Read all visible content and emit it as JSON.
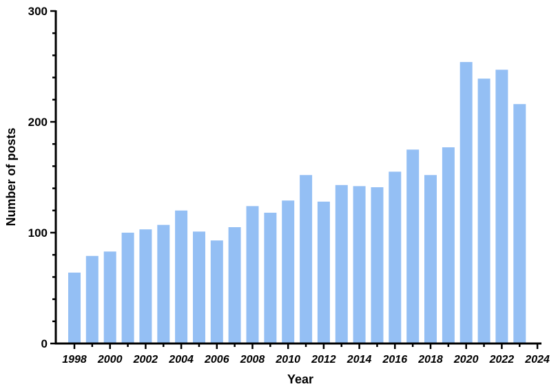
{
  "chart_data": {
    "type": "bar",
    "title": "",
    "xlabel": "Year",
    "ylabel": "Number of posts",
    "ylim": [
      0,
      300
    ],
    "yticks": [
      0,
      100,
      200,
      300
    ],
    "xticks": [
      "1998",
      "2000",
      "2002",
      "2004",
      "2006",
      "2008",
      "2010",
      "2012",
      "2014",
      "2016",
      "2018",
      "2020",
      "2022",
      "2024"
    ],
    "categories": [
      1998,
      1999,
      2000,
      2001,
      2002,
      2003,
      2004,
      2005,
      2006,
      2007,
      2008,
      2009,
      2010,
      2011,
      2012,
      2013,
      2014,
      2015,
      2016,
      2017,
      2018,
      2019,
      2020,
      2021,
      2022,
      2023
    ],
    "values": [
      64,
      79,
      83,
      100,
      103,
      107,
      120,
      101,
      93,
      105,
      124,
      118,
      129,
      152,
      128,
      143,
      142,
      141,
      155,
      175,
      152,
      177,
      254,
      239,
      247,
      216
    ],
    "bar_color": "#94bff4",
    "grid": false,
    "legend": "none"
  }
}
